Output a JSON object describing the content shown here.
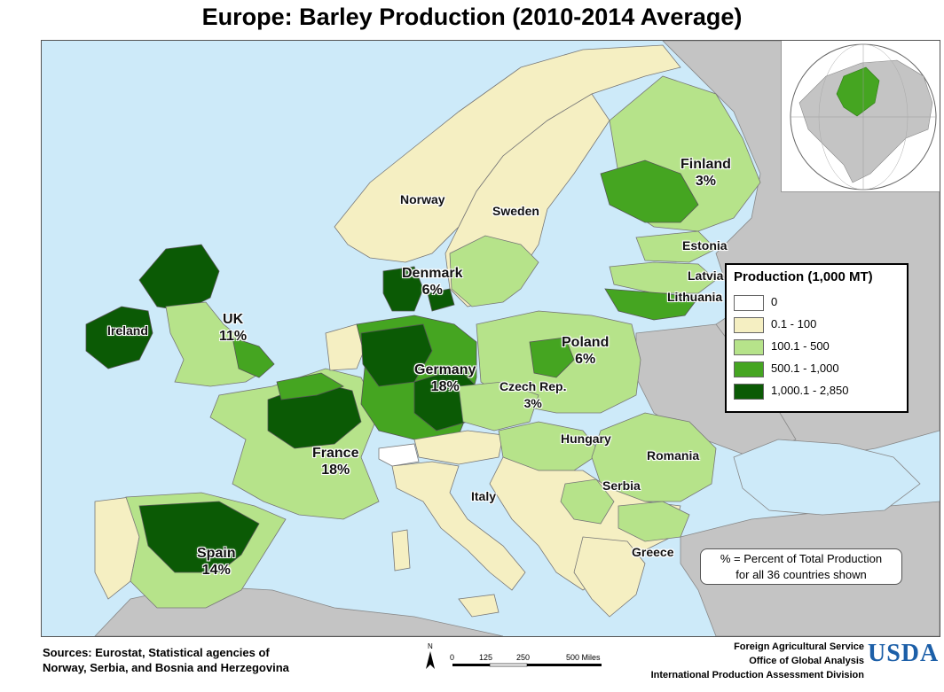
{
  "title": "Europe: Barley Production (2010-2014 Average)",
  "colors": {
    "sea": "#cdeaf9",
    "non_data_land": "#c4c4c4",
    "class_0": "#ffffff",
    "class_1": "#f5efc2",
    "class_2": "#b6e38a",
    "class_3": "#45a521",
    "class_4": "#0b5a05"
  },
  "legend": {
    "title": "Production (1,000 MT)",
    "items": [
      {
        "label": "0",
        "color": "#ffffff"
      },
      {
        "label": "0.1 - 100",
        "color": "#f5efc2"
      },
      {
        "label": "100.1 - 500",
        "color": "#b6e38a"
      },
      {
        "label": "500.1 - 1,000",
        "color": "#45a521"
      },
      {
        "label": "1,000.1 - 2,850",
        "color": "#0b5a05"
      }
    ]
  },
  "countries": [
    {
      "name": "Finland",
      "percent": "3%"
    },
    {
      "name": "Norway",
      "percent": ""
    },
    {
      "name": "Sweden",
      "percent": ""
    },
    {
      "name": "Estonia",
      "percent": ""
    },
    {
      "name": "Latvia",
      "percent": ""
    },
    {
      "name": "Lithuania",
      "percent": ""
    },
    {
      "name": "Denmark",
      "percent": "6%"
    },
    {
      "name": "Ireland",
      "percent": ""
    },
    {
      "name": "UK",
      "percent": "11%"
    },
    {
      "name": "Poland",
      "percent": "6%"
    },
    {
      "name": "Germany",
      "percent": "18%"
    },
    {
      "name": "Czech Rep.",
      "percent": "3%"
    },
    {
      "name": "France",
      "percent": "18%"
    },
    {
      "name": "Hungary",
      "percent": ""
    },
    {
      "name": "Romania",
      "percent": ""
    },
    {
      "name": "Serbia",
      "percent": ""
    },
    {
      "name": "Italy",
      "percent": ""
    },
    {
      "name": "Spain",
      "percent": "14%"
    },
    {
      "name": "Greece",
      "percent": ""
    }
  ],
  "note": {
    "line1": "% = Percent of Total Production",
    "line2": "for all 36 countries shown"
  },
  "sources": {
    "line1": "Sources: Eurostat, Statistical agencies of",
    "line2": "Norway, Serbia, and Bosnia and Herzegovina"
  },
  "scale_bar": {
    "north": "N",
    "ticks": [
      "0",
      "125",
      "250",
      "500 Miles"
    ]
  },
  "agency": {
    "line1": "Foreign Agricultural Service",
    "line2": "Office of Global Analysis",
    "line3": "International Production Assessment Division"
  },
  "logo": "USDA"
}
